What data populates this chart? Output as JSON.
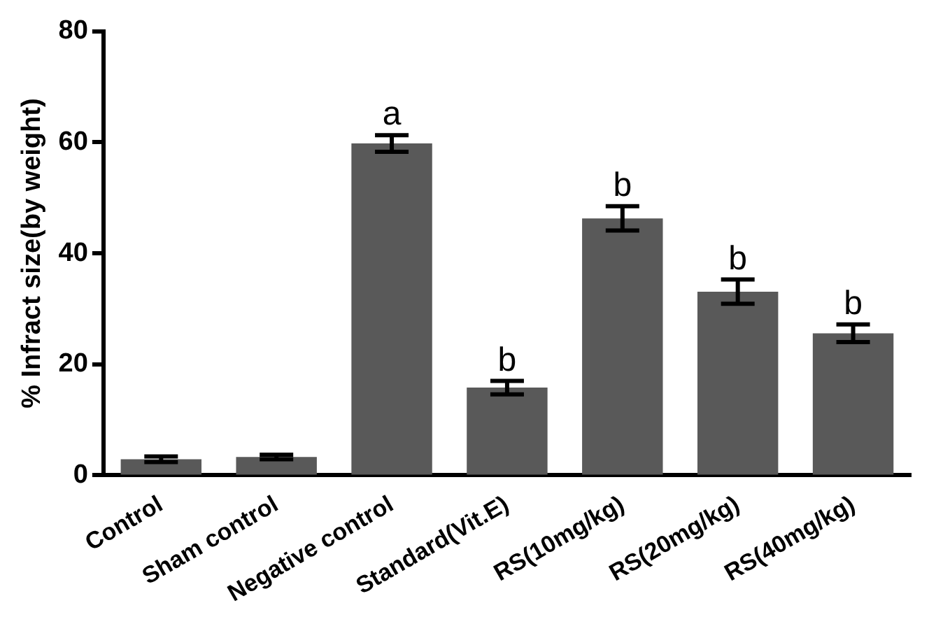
{
  "chart_data": {
    "type": "bar",
    "ylabel": "% Infract size(by weight)",
    "categories": [
      "Control",
      "Sham control",
      "Negative control",
      "Standard(Vit.E)",
      "RS(10mg/kg)",
      "RS(20mg/kg)",
      "RS(40mg/kg)"
    ],
    "values": [
      2.9,
      3.3,
      59.8,
      15.8,
      46.3,
      33.1,
      25.6
    ],
    "errors": [
      0.5,
      0.4,
      1.5,
      1.2,
      2.2,
      2.2,
      1.6
    ],
    "color": "#595959",
    "ylim": [
      0,
      80
    ],
    "yticks": [
      0,
      20,
      40,
      60,
      80
    ],
    "grid": false,
    "legend": false,
    "annotations": [
      {
        "text": "a",
        "x": "Negative control",
        "y": 61.3
      },
      {
        "text": "b",
        "x": "Standard(Vit.E)",
        "y": 17
      },
      {
        "text": "b",
        "x": "RS(10mg/kg)",
        "y": 48.5
      },
      {
        "text": "b",
        "x": "RS(20mg/kg)",
        "y": 35.3
      },
      {
        "text": "b",
        "x": "RS(40mg/kg)",
        "y": 27.2
      }
    ]
  }
}
